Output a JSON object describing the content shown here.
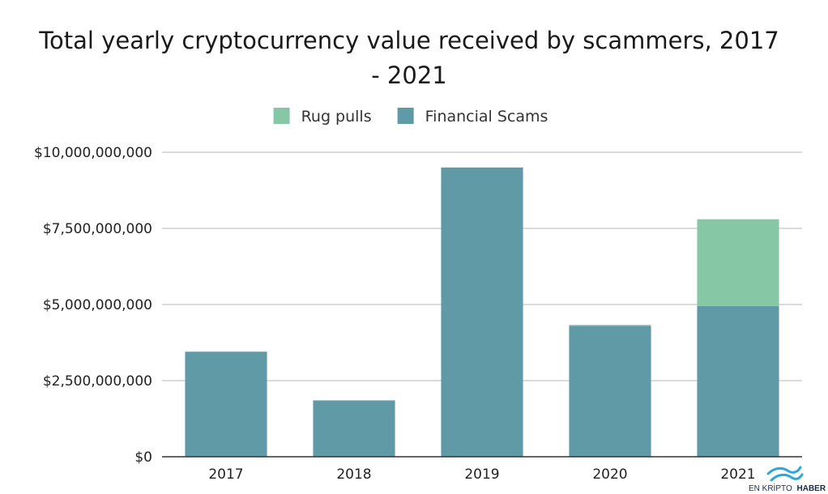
{
  "chart_data": {
    "type": "bar",
    "stacked": true,
    "title_line1": "Total yearly cryptocurrency value received by scammers, 2017",
    "title_line2": "- 2021",
    "categories": [
      "2017",
      "2018",
      "2019",
      "2020",
      "2021"
    ],
    "series": [
      {
        "name": "Financial Scams",
        "color": "#5f9aa6",
        "values": [
          3450000000,
          1850000000,
          9500000000,
          4300000000,
          4950000000
        ]
      },
      {
        "name": "Rug pulls",
        "color": "#86c7a5",
        "values": [
          0,
          0,
          0,
          30000000,
          2850000000
        ]
      }
    ],
    "legend": {
      "position": "top-center",
      "order": [
        "Rug pulls",
        "Financial Scams"
      ]
    },
    "y_ticks": [
      "$0",
      "$2,500,000,000",
      "$5,000,000,000",
      "$7,500,000,000",
      "$10,000,000,000"
    ],
    "ylim": [
      0,
      10000000000
    ],
    "grid": true,
    "xlabel": "",
    "ylabel": ""
  },
  "watermark": {
    "text_light": "EN KRİPTO",
    "text_bold": "HABER",
    "icon": "wave-logo-icon",
    "color": "#2aa8d8"
  }
}
